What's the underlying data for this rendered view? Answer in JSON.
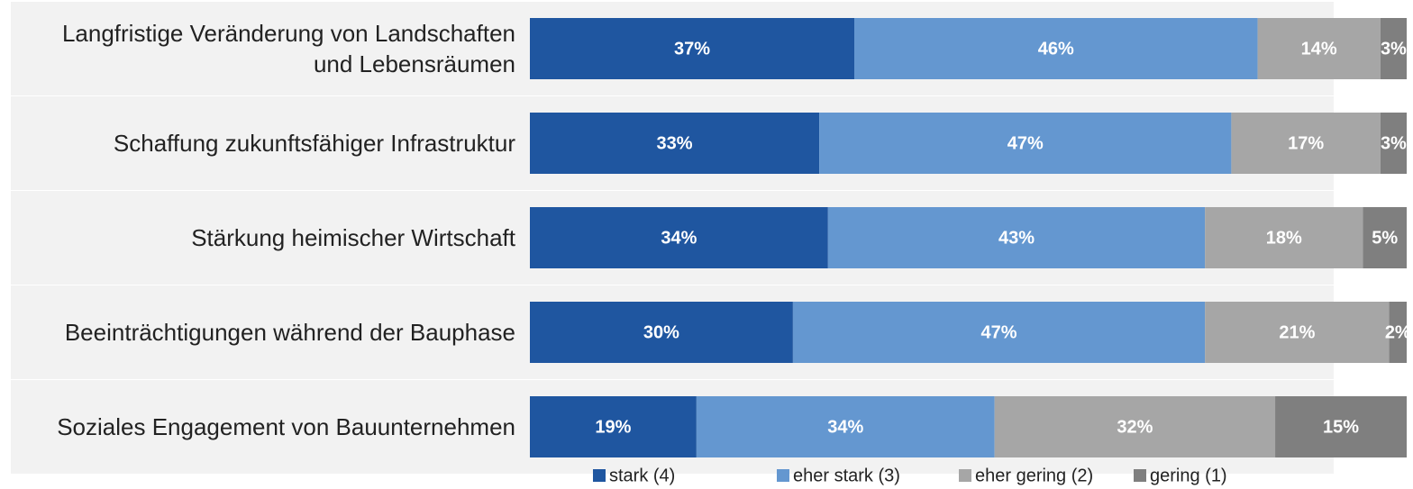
{
  "chart_data": {
    "type": "stacked-bar-horizontal",
    "categories": [
      "Langfristige Veränderung von Landschaften und Lebensräumen",
      "Schaffung zukunftsfähiger Infrastruktur",
      "Stärkung heimischer Wirtschaft",
      "Beeinträchtigungen während der Bauphase",
      "Soziales Engagement von Bauunternehmen"
    ],
    "series": [
      {
        "name": "stark (4)",
        "color": "#1f56a0",
        "values": [
          37,
          33,
          34,
          30,
          19
        ],
        "value_labels": [
          "37%",
          "33%",
          "34%",
          "30%",
          "19%"
        ]
      },
      {
        "name": "eher stark (3)",
        "color": "#6497d0",
        "values": [
          46,
          47,
          43,
          47,
          34
        ],
        "value_labels": [
          "46%",
          "47%",
          "43%",
          "47%",
          "34%"
        ]
      },
      {
        "name": "eher gering (2)",
        "color": "#a6a6a6",
        "values": [
          14,
          17,
          18,
          21,
          32
        ],
        "value_labels": [
          "14%",
          "17%",
          "18%",
          "21%",
          "32%"
        ]
      },
      {
        "name": "gering (1)",
        "color": "#7f7f7f",
        "values": [
          3,
          3,
          5,
          2,
          15
        ],
        "value_labels": [
          "3%",
          "3%",
          "5%",
          "2%",
          "15%"
        ]
      }
    ],
    "xlim": [
      0,
      100
    ]
  }
}
